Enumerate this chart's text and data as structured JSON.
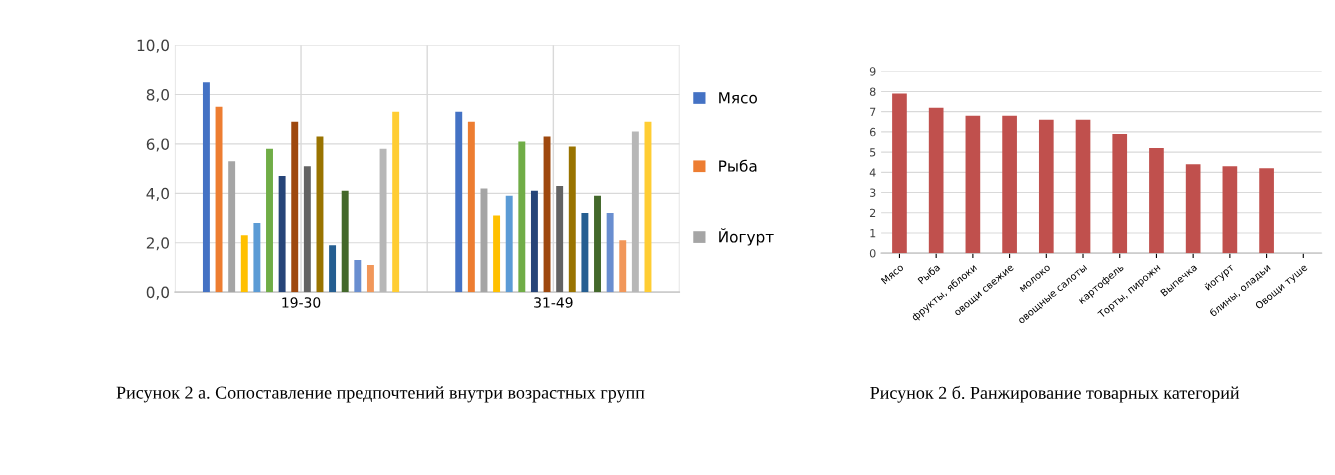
{
  "chart_data": [
    {
      "type": "bar",
      "categories": [
        "19-30",
        "31-49"
      ],
      "ylim": [
        0,
        10
      ],
      "yticks": [
        {
          "value": 0,
          "label": "0,0"
        },
        {
          "value": 2,
          "label": "2,0"
        },
        {
          "value": 4,
          "label": "4,0"
        },
        {
          "value": 6,
          "label": "6,0"
        },
        {
          "value": 8,
          "label": "8,0"
        },
        {
          "value": 10,
          "label": "10,0"
        }
      ],
      "grid": true,
      "legend": "right",
      "annotations": [
        "Рисунок 2 а. Сопоставление предпочтений внутри возрастных групп"
      ],
      "series": [
        {
          "name": "Мясо",
          "color": "#4472c4",
          "values": [
            8.5,
            7.3
          ]
        },
        {
          "name": "Рыба",
          "color": "#ed7d31",
          "values": [
            7.5,
            6.9
          ]
        },
        {
          "name": "Йогурт",
          "color": "#a5a5a5",
          "values": [
            5.3,
            4.2
          ]
        },
        {
          "color": "#ffc000",
          "values": [
            2.3,
            3.1
          ]
        },
        {
          "color": "#5b9bd5",
          "values": [
            2.8,
            3.9
          ]
        },
        {
          "color": "#70ad47",
          "values": [
            5.8,
            6.1
          ]
        },
        {
          "color": "#264478",
          "values": [
            4.7,
            4.1
          ]
        },
        {
          "color": "#9e480e",
          "values": [
            6.9,
            6.3
          ]
        },
        {
          "color": "#636363",
          "values": [
            5.1,
            4.3
          ]
        },
        {
          "color": "#997300",
          "values": [
            6.3,
            5.9
          ]
        },
        {
          "color": "#255e91",
          "values": [
            1.9,
            3.2
          ]
        },
        {
          "color": "#43682b",
          "values": [
            4.1,
            3.9
          ]
        },
        {
          "color": "#698ed0",
          "values": [
            1.3,
            3.2
          ]
        },
        {
          "color": "#f1975a",
          "values": [
            1.1,
            2.1
          ]
        },
        {
          "color": "#b7b7b7",
          "values": [
            5.8,
            6.5
          ]
        },
        {
          "color": "#ffcd33",
          "values": [
            7.3,
            6.9
          ]
        }
      ]
    },
    {
      "type": "bar",
      "categories": [
        "Мясо",
        "Рыба",
        "фрукты, яблоки",
        "овощи свежие",
        "молоко",
        "овощные салоты",
        "картофель",
        "Торты, пирожн",
        "Выпечка",
        "йогурт",
        "блины, оладьи",
        "Овощи туше"
      ],
      "values": [
        7.9,
        7.2,
        6.8,
        6.8,
        6.6,
        6.6,
        5.9,
        5.2,
        4.4,
        4.3,
        4.2,
        null
      ],
      "color": "#c0504d",
      "ylim": [
        0,
        9
      ],
      "yticks": [
        0,
        1,
        2,
        3,
        4,
        5,
        6,
        7,
        8,
        9
      ],
      "grid": "y",
      "annotations": [
        "Рисунок 2 б. Ранжирование товарных категорий"
      ]
    }
  ]
}
